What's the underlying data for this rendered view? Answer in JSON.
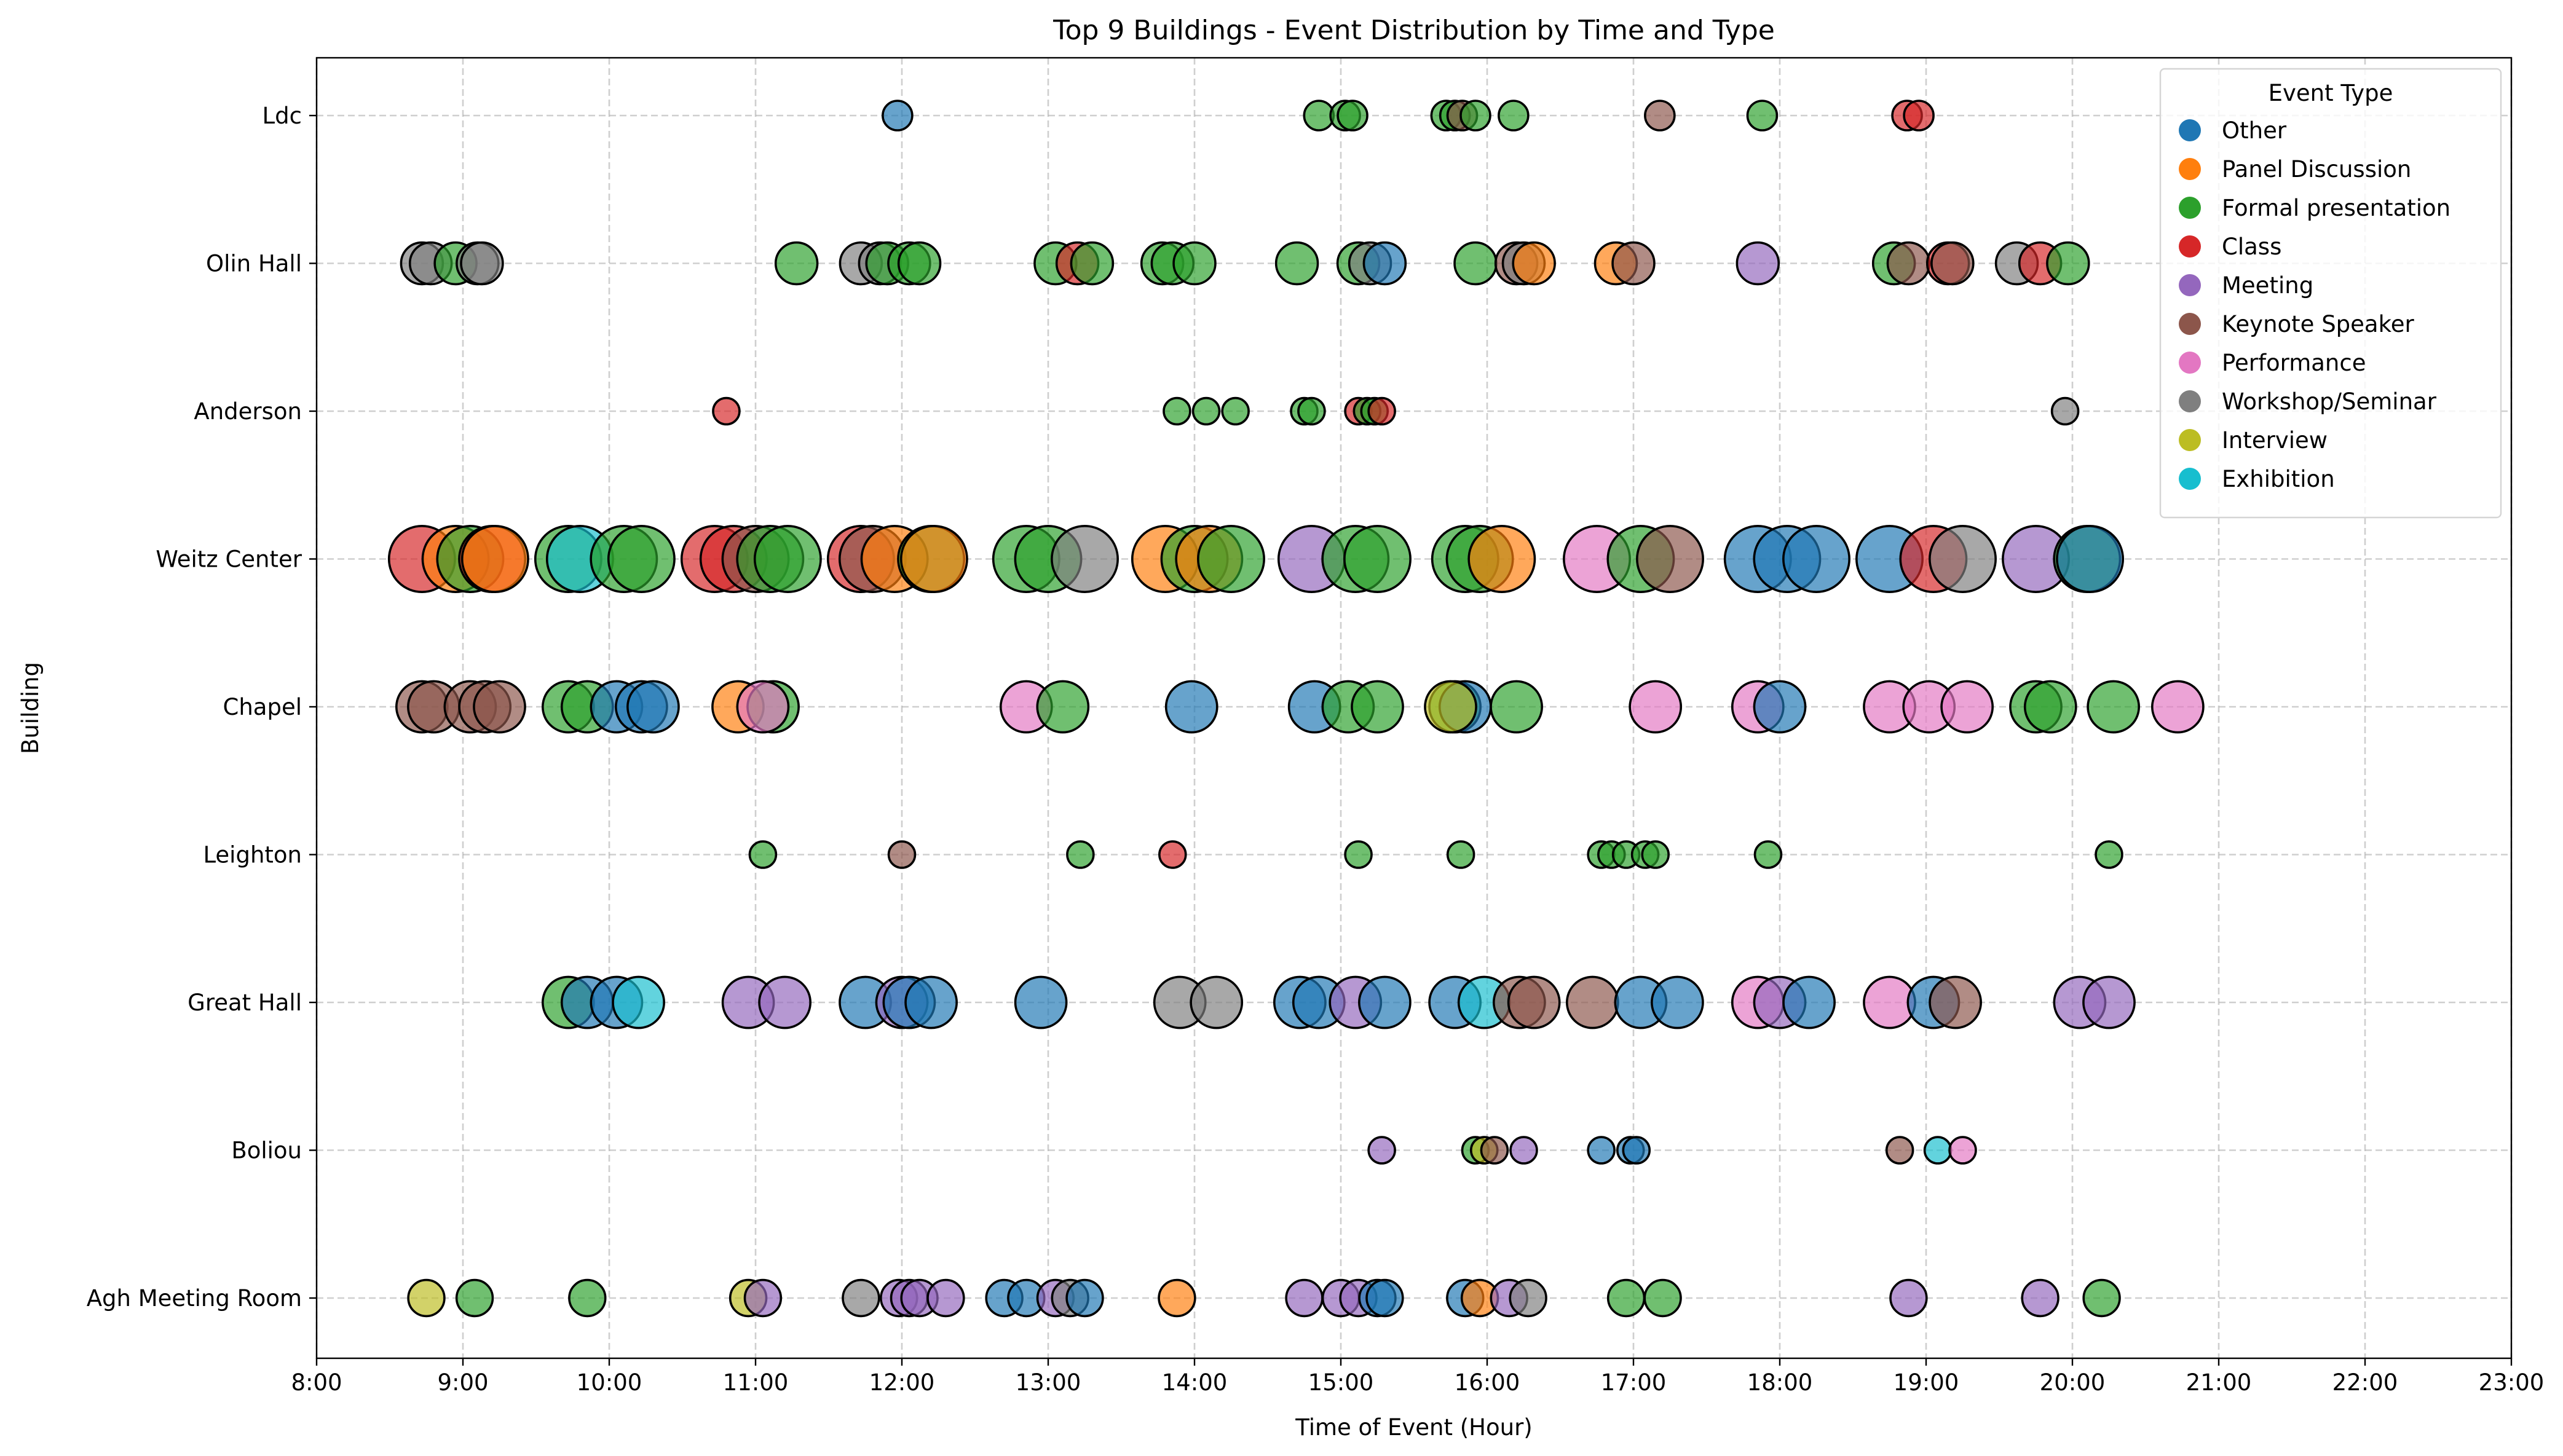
{
  "chart_data": {
    "type": "scatter",
    "title": "Top 9 Buildings - Event Distribution by Time and Type",
    "xlabel": "Time of Event (Hour)",
    "ylabel": "Building",
    "xlim": [
      8,
      23
    ],
    "x_ticks": [
      8,
      9,
      10,
      11,
      12,
      13,
      14,
      15,
      16,
      17,
      18,
      19,
      20,
      21,
      22,
      23
    ],
    "x_tick_labels": [
      "8:00",
      "9:00",
      "10:00",
      "11:00",
      "12:00",
      "13:00",
      "14:00",
      "15:00",
      "16:00",
      "17:00",
      "18:00",
      "19:00",
      "20:00",
      "21:00",
      "22:00",
      "23:00"
    ],
    "categories": [
      "Ldc",
      "Olin Hall",
      "Anderson",
      "Weitz Center",
      "Chapel",
      "Leighton",
      "Great Hall",
      "Boliou",
      "Agh Meeting Room"
    ],
    "grid": true,
    "legend": {
      "title": "Event Type",
      "placement": "top-right",
      "entries": [
        {
          "name": "Other",
          "color": "#1f77b4"
        },
        {
          "name": "Panel Discussion",
          "color": "#ff7f0e"
        },
        {
          "name": "Formal presentation",
          "color": "#2ca02c"
        },
        {
          "name": "Class",
          "color": "#d62728"
        },
        {
          "name": "Meeting",
          "color": "#9467bd"
        },
        {
          "name": "Keynote Speaker",
          "color": "#8c564b"
        },
        {
          "name": "Performance",
          "color": "#e377c2"
        },
        {
          "name": "Workshop/Seminar",
          "color": "#7f7f7f"
        },
        {
          "name": "Interview",
          "color": "#bcbd22"
        },
        {
          "name": "Exhibition",
          "color": "#17becf"
        }
      ]
    },
    "size_note": "marker size reflects number of events per building",
    "series": [
      {
        "building": "Ldc",
        "size": 1,
        "points": [
          [
            11.97,
            "Other"
          ],
          [
            14.85,
            "Formal presentation"
          ],
          [
            15.03,
            "Formal presentation"
          ],
          [
            15.08,
            "Formal presentation"
          ],
          [
            15.72,
            "Formal presentation"
          ],
          [
            15.78,
            "Formal presentation"
          ],
          [
            15.83,
            "Keynote Speaker"
          ],
          [
            15.92,
            "Formal presentation"
          ],
          [
            16.18,
            "Formal presentation"
          ],
          [
            17.18,
            "Keynote Speaker"
          ],
          [
            17.88,
            "Formal presentation"
          ],
          [
            18.87,
            "Class"
          ],
          [
            18.95,
            "Class"
          ]
        ]
      },
      {
        "building": "Olin Hall",
        "size": 2,
        "points": [
          [
            8.72,
            "Workshop/Seminar"
          ],
          [
            8.78,
            "Workshop/Seminar"
          ],
          [
            8.95,
            "Formal presentation"
          ],
          [
            9.1,
            "Workshop/Seminar"
          ],
          [
            9.13,
            "Workshop/Seminar"
          ],
          [
            11.28,
            "Formal presentation"
          ],
          [
            11.72,
            "Workshop/Seminar"
          ],
          [
            11.85,
            "Workshop/Seminar"
          ],
          [
            11.9,
            "Formal presentation"
          ],
          [
            12.05,
            "Formal presentation"
          ],
          [
            12.12,
            "Formal presentation"
          ],
          [
            13.05,
            "Formal presentation"
          ],
          [
            13.2,
            "Class"
          ],
          [
            13.3,
            "Formal presentation"
          ],
          [
            13.78,
            "Formal presentation"
          ],
          [
            13.85,
            "Formal presentation"
          ],
          [
            14.0,
            "Formal presentation"
          ],
          [
            14.7,
            "Formal presentation"
          ],
          [
            15.12,
            "Formal presentation"
          ],
          [
            15.2,
            "Workshop/Seminar"
          ],
          [
            15.3,
            "Other"
          ],
          [
            15.92,
            "Formal presentation"
          ],
          [
            16.2,
            "Keynote Speaker"
          ],
          [
            16.25,
            "Workshop/Seminar"
          ],
          [
            16.32,
            "Panel Discussion"
          ],
          [
            16.88,
            "Panel Discussion"
          ],
          [
            17.0,
            "Keynote Speaker"
          ],
          [
            17.85,
            "Meeting"
          ],
          [
            18.78,
            "Formal presentation"
          ],
          [
            18.88,
            "Keynote Speaker"
          ],
          [
            19.15,
            "Class"
          ],
          [
            19.18,
            "Keynote Speaker"
          ],
          [
            19.62,
            "Workshop/Seminar"
          ],
          [
            19.78,
            "Class"
          ],
          [
            19.97,
            "Formal presentation"
          ]
        ]
      },
      {
        "building": "Anderson",
        "size": 0.8,
        "points": [
          [
            10.8,
            "Class"
          ],
          [
            13.88,
            "Formal presentation"
          ],
          [
            14.08,
            "Formal presentation"
          ],
          [
            14.28,
            "Formal presentation"
          ],
          [
            14.75,
            "Formal presentation"
          ],
          [
            14.8,
            "Formal presentation"
          ],
          [
            15.12,
            "Class"
          ],
          [
            15.18,
            "Formal presentation"
          ],
          [
            15.23,
            "Formal presentation"
          ],
          [
            15.28,
            "Class"
          ],
          [
            19.95,
            "Workshop/Seminar"
          ]
        ]
      },
      {
        "building": "Weitz Center",
        "size": 5,
        "points": [
          [
            8.72,
            "Class"
          ],
          [
            8.95,
            "Panel Discussion"
          ],
          [
            9.05,
            "Formal presentation"
          ],
          [
            9.2,
            "Class"
          ],
          [
            9.22,
            "Panel Discussion"
          ],
          [
            9.72,
            "Formal presentation"
          ],
          [
            9.8,
            "Exhibition"
          ],
          [
            10.1,
            "Formal presentation"
          ],
          [
            10.22,
            "Formal presentation"
          ],
          [
            10.72,
            "Class"
          ],
          [
            10.85,
            "Class"
          ],
          [
            11.0,
            "Keynote Speaker"
          ],
          [
            11.1,
            "Formal presentation"
          ],
          [
            11.22,
            "Formal presentation"
          ],
          [
            11.72,
            "Class"
          ],
          [
            11.8,
            "Keynote Speaker"
          ],
          [
            11.95,
            "Panel Discussion"
          ],
          [
            12.2,
            "Formal presentation"
          ],
          [
            12.22,
            "Panel Discussion"
          ],
          [
            12.85,
            "Formal presentation"
          ],
          [
            13.0,
            "Formal presentation"
          ],
          [
            13.25,
            "Workshop/Seminar"
          ],
          [
            13.8,
            "Panel Discussion"
          ],
          [
            14.0,
            "Formal presentation"
          ],
          [
            14.1,
            "Panel Discussion"
          ],
          [
            14.25,
            "Formal presentation"
          ],
          [
            14.8,
            "Meeting"
          ],
          [
            15.1,
            "Formal presentation"
          ],
          [
            15.25,
            "Formal presentation"
          ],
          [
            15.85,
            "Formal presentation"
          ],
          [
            15.95,
            "Formal presentation"
          ],
          [
            16.1,
            "Panel Discussion"
          ],
          [
            16.75,
            "Performance"
          ],
          [
            17.05,
            "Formal presentation"
          ],
          [
            17.25,
            "Keynote Speaker"
          ],
          [
            17.85,
            "Other"
          ],
          [
            18.05,
            "Other"
          ],
          [
            18.25,
            "Other"
          ],
          [
            18.75,
            "Other"
          ],
          [
            19.05,
            "Class"
          ],
          [
            19.25,
            "Workshop/Seminar"
          ],
          [
            19.75,
            "Meeting"
          ],
          [
            20.1,
            "Formal presentation"
          ],
          [
            20.12,
            "Other"
          ]
        ]
      },
      {
        "building": "Chapel",
        "size": 3,
        "points": [
          [
            8.72,
            "Keynote Speaker"
          ],
          [
            8.8,
            "Keynote Speaker"
          ],
          [
            9.05,
            "Keynote Speaker"
          ],
          [
            9.15,
            "Keynote Speaker"
          ],
          [
            9.25,
            "Keynote Speaker"
          ],
          [
            9.72,
            "Formal presentation"
          ],
          [
            9.85,
            "Formal presentation"
          ],
          [
            10.05,
            "Other"
          ],
          [
            10.22,
            "Other"
          ],
          [
            10.3,
            "Other"
          ],
          [
            10.88,
            "Panel Discussion"
          ],
          [
            11.12,
            "Formal presentation"
          ],
          [
            11.05,
            "Performance"
          ],
          [
            12.85,
            "Performance"
          ],
          [
            13.1,
            "Formal presentation"
          ],
          [
            13.98,
            "Other"
          ],
          [
            14.82,
            "Other"
          ],
          [
            15.05,
            "Formal presentation"
          ],
          [
            15.25,
            "Formal presentation"
          ],
          [
            15.78,
            "Formal presentation"
          ],
          [
            15.85,
            "Other"
          ],
          [
            15.75,
            "Interview"
          ],
          [
            16.2,
            "Formal presentation"
          ],
          [
            17.15,
            "Performance"
          ],
          [
            17.85,
            "Performance"
          ],
          [
            18.0,
            "Other"
          ],
          [
            18.75,
            "Performance"
          ],
          [
            19.02,
            "Performance"
          ],
          [
            19.28,
            "Performance"
          ],
          [
            19.75,
            "Formal presentation"
          ],
          [
            19.85,
            "Formal presentation"
          ],
          [
            20.28,
            "Formal presentation"
          ],
          [
            20.72,
            "Performance"
          ]
        ]
      },
      {
        "building": "Leighton",
        "size": 0.8,
        "points": [
          [
            11.05,
            "Formal presentation"
          ],
          [
            12.0,
            "Keynote Speaker"
          ],
          [
            13.22,
            "Formal presentation"
          ],
          [
            13.85,
            "Class"
          ],
          [
            15.12,
            "Formal presentation"
          ],
          [
            15.82,
            "Formal presentation"
          ],
          [
            16.78,
            "Formal presentation"
          ],
          [
            16.85,
            "Formal presentation"
          ],
          [
            16.95,
            "Formal presentation"
          ],
          [
            17.08,
            "Formal presentation"
          ],
          [
            17.15,
            "Formal presentation"
          ],
          [
            17.92,
            "Formal presentation"
          ],
          [
            20.25,
            "Formal presentation"
          ]
        ]
      },
      {
        "building": "Great Hall",
        "size": 3,
        "points": [
          [
            9.72,
            "Formal presentation"
          ],
          [
            9.85,
            "Other"
          ],
          [
            10.05,
            "Other"
          ],
          [
            10.2,
            "Exhibition"
          ],
          [
            10.95,
            "Meeting"
          ],
          [
            11.2,
            "Meeting"
          ],
          [
            11.75,
            "Other"
          ],
          [
            12.0,
            "Meeting"
          ],
          [
            12.05,
            "Other"
          ],
          [
            12.2,
            "Other"
          ],
          [
            12.95,
            "Other"
          ],
          [
            13.9,
            "Workshop/Seminar"
          ],
          [
            14.15,
            "Workshop/Seminar"
          ],
          [
            14.72,
            "Other"
          ],
          [
            14.85,
            "Other"
          ],
          [
            15.1,
            "Meeting"
          ],
          [
            15.3,
            "Other"
          ],
          [
            15.78,
            "Other"
          ],
          [
            15.98,
            "Exhibition"
          ],
          [
            16.22,
            "Keynote Speaker"
          ],
          [
            16.32,
            "Keynote Speaker"
          ],
          [
            16.72,
            "Keynote Speaker"
          ],
          [
            17.05,
            "Other"
          ],
          [
            17.3,
            "Other"
          ],
          [
            17.85,
            "Performance"
          ],
          [
            18.0,
            "Meeting"
          ],
          [
            18.2,
            "Other"
          ],
          [
            18.75,
            "Performance"
          ],
          [
            19.05,
            "Other"
          ],
          [
            19.2,
            "Keynote Speaker"
          ],
          [
            20.05,
            "Meeting"
          ],
          [
            20.25,
            "Meeting"
          ]
        ]
      },
      {
        "building": "Boliou",
        "size": 0.8,
        "points": [
          [
            15.28,
            "Meeting"
          ],
          [
            15.92,
            "Formal presentation"
          ],
          [
            15.98,
            "Interview"
          ],
          [
            16.05,
            "Keynote Speaker"
          ],
          [
            16.25,
            "Meeting"
          ],
          [
            16.78,
            "Other"
          ],
          [
            16.98,
            "Other"
          ],
          [
            17.02,
            "Other"
          ],
          [
            18.82,
            "Keynote Speaker"
          ],
          [
            19.08,
            "Exhibition"
          ],
          [
            19.25,
            "Performance"
          ]
        ]
      },
      {
        "building": "Agh Meeting Room",
        "size": 1.5,
        "points": [
          [
            8.75,
            "Interview"
          ],
          [
            9.08,
            "Formal presentation"
          ],
          [
            9.85,
            "Formal presentation"
          ],
          [
            10.95,
            "Interview"
          ],
          [
            11.05,
            "Meeting"
          ],
          [
            11.72,
            "Workshop/Seminar"
          ],
          [
            11.98,
            "Meeting"
          ],
          [
            12.05,
            "Meeting"
          ],
          [
            12.12,
            "Meeting"
          ],
          [
            12.3,
            "Meeting"
          ],
          [
            12.7,
            "Other"
          ],
          [
            12.85,
            "Other"
          ],
          [
            13.05,
            "Meeting"
          ],
          [
            13.15,
            "Workshop/Seminar"
          ],
          [
            13.25,
            "Other"
          ],
          [
            13.88,
            "Panel Discussion"
          ],
          [
            14.75,
            "Meeting"
          ],
          [
            15.0,
            "Meeting"
          ],
          [
            15.12,
            "Meeting"
          ],
          [
            15.25,
            "Other"
          ],
          [
            15.3,
            "Other"
          ],
          [
            15.85,
            "Other"
          ],
          [
            15.95,
            "Panel Discussion"
          ],
          [
            16.15,
            "Meeting"
          ],
          [
            16.28,
            "Workshop/Seminar"
          ],
          [
            16.95,
            "Formal presentation"
          ],
          [
            17.2,
            "Formal presentation"
          ],
          [
            18.88,
            "Meeting"
          ],
          [
            19.78,
            "Meeting"
          ],
          [
            20.2,
            "Formal presentation"
          ]
        ]
      }
    ]
  }
}
